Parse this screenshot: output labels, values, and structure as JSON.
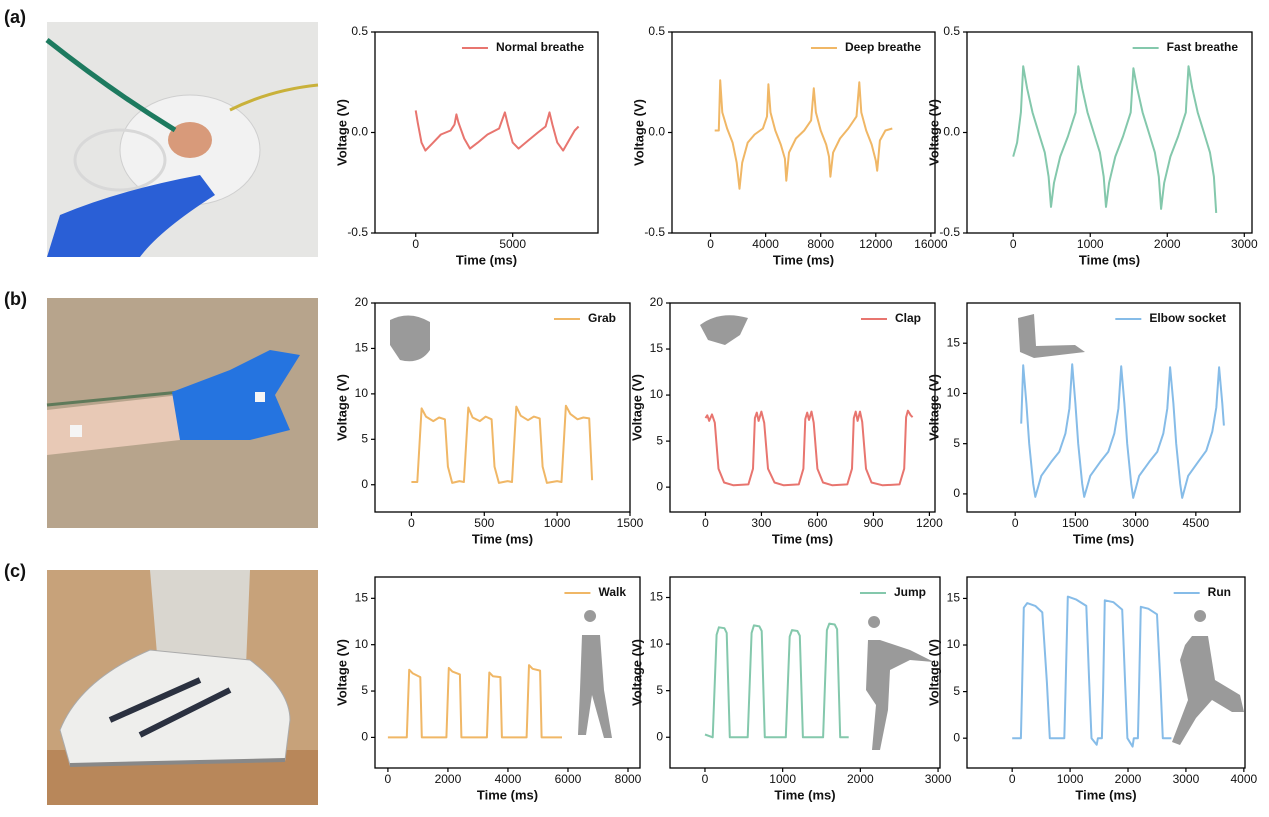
{
  "panel_labels": [
    "(a)",
    "(b)",
    "(c)"
  ],
  "chart_data": [
    {
      "type": "line",
      "xlabel": "Time (ms)",
      "ylabel": "Voltage (V)",
      "xlim": [
        -2100,
        9400
      ],
      "ylim": [
        -0.5,
        0.5
      ],
      "xticks": [
        0,
        5000
      ],
      "yticks": [
        -0.5,
        {
          "value": 0,
          "label": "0.0"
        },
        0.5
      ],
      "legend": "upper right",
      "x": [
        0,
        100,
        300,
        500,
        900,
        1300,
        1800,
        2000,
        2100,
        2200,
        2500,
        2800,
        3200,
        3700,
        4300,
        4600,
        4750,
        5000,
        5300,
        5800,
        6300,
        6700,
        6900,
        7050,
        7300,
        7600,
        7900,
        8200,
        8400
      ],
      "series": [
        {
          "name": "Normal breathe",
          "color": "#e8756f",
          "values": [
            0.11,
            0.05,
            -0.05,
            -0.09,
            -0.05,
            -0.01,
            0.01,
            0.04,
            0.09,
            0.05,
            -0.03,
            -0.08,
            -0.05,
            -0.01,
            0.02,
            0.1,
            0.04,
            -0.05,
            -0.08,
            -0.04,
            0,
            0.03,
            0.1,
            0.04,
            -0.05,
            -0.09,
            -0.04,
            0.01,
            0.03
          ]
        }
      ]
    },
    {
      "type": "line",
      "xlabel": "Time (ms)",
      "ylabel": "Voltage (V)",
      "xlim": [
        -2800,
        16300
      ],
      "ylim": [
        -0.5,
        0.5
      ],
      "xticks": [
        0,
        4000,
        8000,
        12000,
        16000
      ],
      "yticks": [
        -0.5,
        {
          "value": 0,
          "label": "0.0"
        },
        0.5
      ],
      "legend": "upper right",
      "x": [
        300,
        600,
        700,
        850,
        1200,
        1600,
        1900,
        2100,
        2300,
        2700,
        3200,
        3800,
        4100,
        4200,
        4350,
        4700,
        5100,
        5400,
        5500,
        5700,
        6200,
        6800,
        7300,
        7500,
        7650,
        8000,
        8400,
        8600,
        8700,
        8900,
        9400,
        10000,
        10600,
        10800,
        10950,
        11300,
        11700,
        12000,
        12100,
        12300,
        12700,
        13200
      ],
      "series": [
        {
          "name": "Deep breathe",
          "color": "#f0b766",
          "values": [
            0.01,
            0.01,
            0.26,
            0.1,
            0.02,
            -0.05,
            -0.15,
            -0.28,
            -0.15,
            -0.05,
            -0.01,
            0.02,
            0.08,
            0.24,
            0.1,
            0.01,
            -0.06,
            -0.13,
            -0.24,
            -0.1,
            -0.03,
            0.01,
            0.06,
            0.22,
            0.1,
            0.01,
            -0.06,
            -0.12,
            -0.22,
            -0.1,
            -0.03,
            0.02,
            0.08,
            0.25,
            0.1,
            0.01,
            -0.06,
            -0.14,
            -0.19,
            -0.04,
            0.01,
            0.02
          ]
        }
      ]
    },
    {
      "type": "line",
      "xlabel": "Time (ms)",
      "ylabel": "Voltage (V)",
      "xlim": [
        -600,
        3100
      ],
      "ylim": [
        -0.5,
        0.5
      ],
      "xticks": [
        0,
        1000,
        2000,
        3000
      ],
      "yticks": [
        -0.5,
        {
          "value": 0,
          "label": "0.0"
        },
        0.5
      ],
      "legend": "upper right",
      "x": [
        0,
        50,
        100,
        130,
        180,
        250,
        330,
        410,
        460,
        490,
        530,
        610,
        710,
        810,
        845,
        895,
        965,
        1045,
        1125,
        1175,
        1205,
        1245,
        1325,
        1425,
        1525,
        1560,
        1610,
        1680,
        1760,
        1840,
        1890,
        1920,
        1960,
        2040,
        2140,
        2240,
        2275,
        2325,
        2395,
        2475,
        2555,
        2605,
        2635
      ],
      "series": [
        {
          "name": "Fast  breathe",
          "color": "#84c8ac",
          "values": [
            -0.12,
            -0.05,
            0.1,
            0.33,
            0.22,
            0.1,
            0,
            -0.1,
            -0.22,
            -0.37,
            -0.25,
            -0.12,
            -0.02,
            0.1,
            0.33,
            0.22,
            0.1,
            0,
            -0.1,
            -0.22,
            -0.37,
            -0.25,
            -0.12,
            -0.02,
            0.1,
            0.32,
            0.22,
            0.1,
            0,
            -0.1,
            -0.22,
            -0.38,
            -0.25,
            -0.12,
            -0.02,
            0.1,
            0.33,
            0.22,
            0.1,
            0,
            -0.1,
            -0.22,
            -0.4
          ]
        }
      ]
    },
    {
      "type": "line",
      "xlabel": "Time (ms)",
      "ylabel": "Voltage (V)",
      "xlim": [
        -250,
        1500
      ],
      "ylim": [
        -3,
        20
      ],
      "xticks": [
        0,
        500,
        1000,
        1500
      ],
      "yticks": [
        0,
        5,
        10,
        15,
        20
      ],
      "legend": "upper right",
      "x": [
        0,
        40,
        70,
        100,
        150,
        190,
        230,
        250,
        280,
        330,
        360,
        390,
        420,
        470,
        510,
        550,
        570,
        600,
        660,
        690,
        720,
        750,
        800,
        840,
        880,
        900,
        930,
        1000,
        1030,
        1060,
        1090,
        1140,
        1180,
        1220,
        1240
      ],
      "series": [
        {
          "name": "Grab",
          "color": "#f0b766",
          "values": [
            0.3,
            0.3,
            8.4,
            7.5,
            7.0,
            7.4,
            7.2,
            2,
            0.2,
            0.4,
            0.3,
            8.5,
            7.4,
            7.0,
            7.5,
            7.2,
            2,
            0.2,
            0.4,
            0.3,
            8.6,
            7.6,
            7.1,
            7.5,
            7.3,
            2,
            0.2,
            0.4,
            0.3,
            8.7,
            7.8,
            7.2,
            7.4,
            7.3,
            0.5
          ]
        }
      ]
    },
    {
      "type": "line",
      "xlabel": "Time (ms)",
      "ylabel": "Voltage (V)",
      "xlim": [
        -190,
        1230
      ],
      "ylim": [
        -2.7,
        20
      ],
      "xticks": [
        0,
        300,
        600,
        900,
        1200
      ],
      "yticks": [
        0,
        5,
        10,
        15,
        20
      ],
      "legend": "upper right",
      "x": [
        0,
        10,
        20,
        35,
        50,
        70,
        100,
        150,
        230,
        255,
        265,
        275,
        285,
        300,
        315,
        335,
        370,
        420,
        500,
        525,
        535,
        545,
        555,
        568,
        580,
        600,
        630,
        680,
        760,
        785,
        795,
        805,
        815,
        828,
        840,
        860,
        890,
        950,
        1040,
        1065,
        1075,
        1085,
        1100,
        1110
      ],
      "series": [
        {
          "name": "Clap",
          "color": "#e8756f",
          "values": [
            7.5,
            7.8,
            7.2,
            7.9,
            7.0,
            2,
            0.5,
            0.2,
            0.3,
            2,
            7.5,
            8.1,
            7.2,
            8.2,
            7.0,
            2,
            0.5,
            0.2,
            0.3,
            2,
            7.4,
            8.1,
            7.3,
            8.2,
            7.0,
            2,
            0.5,
            0.2,
            0.3,
            2,
            7.5,
            8.2,
            7.2,
            8.2,
            7.1,
            2,
            0.5,
            0.2,
            0.3,
            2,
            7.6,
            8.3,
            7.8,
            7.6
          ]
        }
      ]
    },
    {
      "type": "line",
      "xlabel": "Time (ms)",
      "ylabel": "Voltage (V)",
      "xlim": [
        -1200,
        5600
      ],
      "ylim": [
        -1.8,
        19
      ],
      "xticks": [
        0,
        1500,
        3000,
        4500
      ],
      "yticks": [
        0,
        5,
        10,
        15
      ],
      "legend": "upper right",
      "x": [
        150,
        200,
        280,
        350,
        450,
        500,
        650,
        900,
        1100,
        1250,
        1350,
        1420,
        1500,
        1570,
        1670,
        1720,
        1870,
        2120,
        2320,
        2470,
        2570,
        2640,
        2720,
        2790,
        2890,
        2940,
        3090,
        3340,
        3540,
        3690,
        3790,
        3860,
        3940,
        4010,
        4110,
        4160,
        4310,
        4560,
        4760,
        4910,
        5010,
        5080,
        5160,
        5200
      ],
      "series": [
        {
          "name": "Elbow socket",
          "color": "#86bce8",
          "values": [
            7,
            12.8,
            9,
            5,
            1,
            -0.3,
            1.8,
            3.2,
            4.2,
            6,
            8.5,
            12.9,
            9,
            5,
            1,
            -0.3,
            1.8,
            3.2,
            4.2,
            6,
            8.5,
            12.7,
            9,
            5,
            1,
            -0.4,
            1.8,
            3.2,
            4.2,
            6,
            8.5,
            12.6,
            9,
            5,
            1,
            -0.4,
            1.8,
            3.2,
            4.3,
            6.2,
            8.6,
            12.6,
            9,
            6.8
          ]
        }
      ]
    },
    {
      "type": "line",
      "xlabel": "Time (ms)",
      "ylabel": "Voltage (V)",
      "xlim": [
        -430,
        8400
      ],
      "ylim": [
        -3.3,
        17.3
      ],
      "xticks": [
        0,
        2000,
        4000,
        6000,
        8000
      ],
      "yticks": [
        0,
        5,
        10,
        15
      ],
      "legend": "upper right",
      "x": [
        0,
        630,
        710,
        830,
        1080,
        1130,
        1950,
        2030,
        2150,
        2400,
        2450,
        3300,
        3380,
        3500,
        3750,
        3800,
        4620,
        4700,
        4820,
        5070,
        5120,
        5800
      ],
      "series": [
        {
          "name": "Walk",
          "color": "#f0b766",
          "values": [
            0,
            0,
            7.3,
            6.9,
            6.5,
            0,
            0,
            7.5,
            7.1,
            6.8,
            0,
            0,
            7.0,
            6.6,
            6.5,
            0,
            0,
            7.8,
            7.4,
            7.2,
            0,
            0
          ]
        }
      ]
    },
    {
      "type": "line",
      "xlabel": "Time (ms)",
      "ylabel": "Voltage (V)",
      "xlim": [
        -450,
        3025
      ],
      "ylim": [
        -3.3,
        17.2
      ],
      "xticks": [
        0,
        1000,
        2000,
        3000
      ],
      "yticks": [
        0,
        5,
        10,
        15
      ],
      "legend": "upper right",
      "x": [
        0,
        100,
        150,
        180,
        250,
        280,
        320,
        550,
        600,
        630,
        700,
        730,
        770,
        1040,
        1090,
        1120,
        1190,
        1220,
        1260,
        1520,
        1570,
        1600,
        1670,
        1700,
        1740,
        1850
      ],
      "series": [
        {
          "name": "Jump",
          "color": "#84c8ac",
          "values": [
            0.3,
            0,
            11,
            11.8,
            11.7,
            11.2,
            0,
            0,
            11.2,
            12,
            11.9,
            11.4,
            0,
            0,
            10.8,
            11.5,
            11.4,
            10.9,
            0,
            0,
            11.5,
            12.2,
            12.1,
            11.6,
            0,
            0
          ]
        }
      ]
    },
    {
      "type": "line",
      "xlabel": "Time (ms)",
      "ylabel": "Voltage (V)",
      "xlim": [
        -780,
        4020
      ],
      "ylim": [
        -3.2,
        17.3
      ],
      "xticks": [
        0,
        1000,
        2000,
        3000,
        4000
      ],
      "yticks": [
        0,
        5,
        10,
        15
      ],
      "legend": "upper right",
      "x": [
        0,
        150,
        170,
        200,
        260,
        400,
        520,
        600,
        650,
        900,
        920,
        960,
        1100,
        1280,
        1330,
        1370,
        1460,
        1480,
        1550,
        1570,
        1600,
        1750,
        1900,
        1950,
        1990,
        2080,
        2100,
        2170,
        2190,
        2220,
        2350,
        2500,
        2560,
        2600,
        2750
      ],
      "series": [
        {
          "name": "Run",
          "color": "#86bce8",
          "values": [
            0,
            0,
            5,
            14,
            14.5,
            14.2,
            13.5,
            6,
            0,
            0,
            5,
            15.2,
            14.9,
            14.2,
            6,
            0,
            -0.7,
            0,
            0,
            5,
            14.8,
            14.6,
            13.8,
            6,
            0,
            -0.9,
            0,
            0,
            5,
            14.1,
            13.9,
            13.3,
            6,
            0,
            0
          ]
        }
      ]
    }
  ]
}
